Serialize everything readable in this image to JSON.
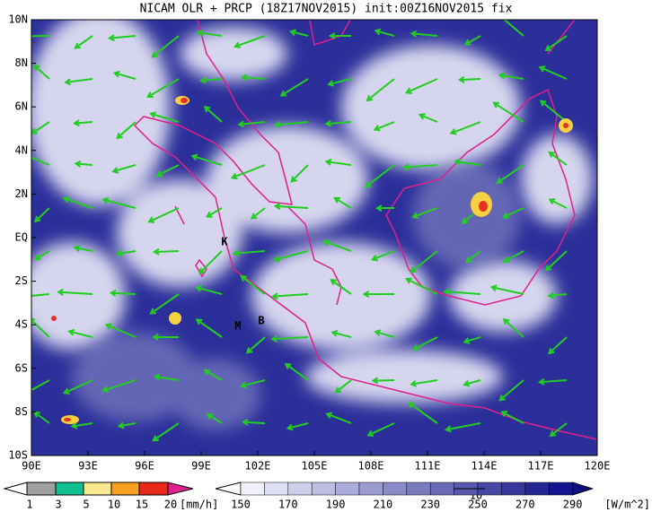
{
  "title": "NICAM OLR + PRCP (18Z17NOV2015) init:00Z16NOV2015 fix",
  "lat_labels": [
    "10N",
    "8N",
    "6N",
    "4N",
    "2N",
    "EQ",
    "2S",
    "4S",
    "6S",
    "8S",
    "10S"
  ],
  "lon_labels": [
    "90E",
    "93E",
    "96E",
    "99E",
    "102E",
    "105E",
    "108E",
    "111E",
    "114E",
    "117E",
    "120E"
  ],
  "place_markers": [
    "K",
    "M",
    "B"
  ],
  "precip_legend": {
    "labels": [
      "1",
      "3",
      "5",
      "10",
      "15",
      "20"
    ],
    "unit": "[mm/h]"
  },
  "olr_legend": {
    "labels": [
      "150",
      "170",
      "190",
      "210",
      "230",
      "250",
      "270",
      "290"
    ],
    "unit": "[W/m^2]"
  },
  "vector_reference": "10"
}
